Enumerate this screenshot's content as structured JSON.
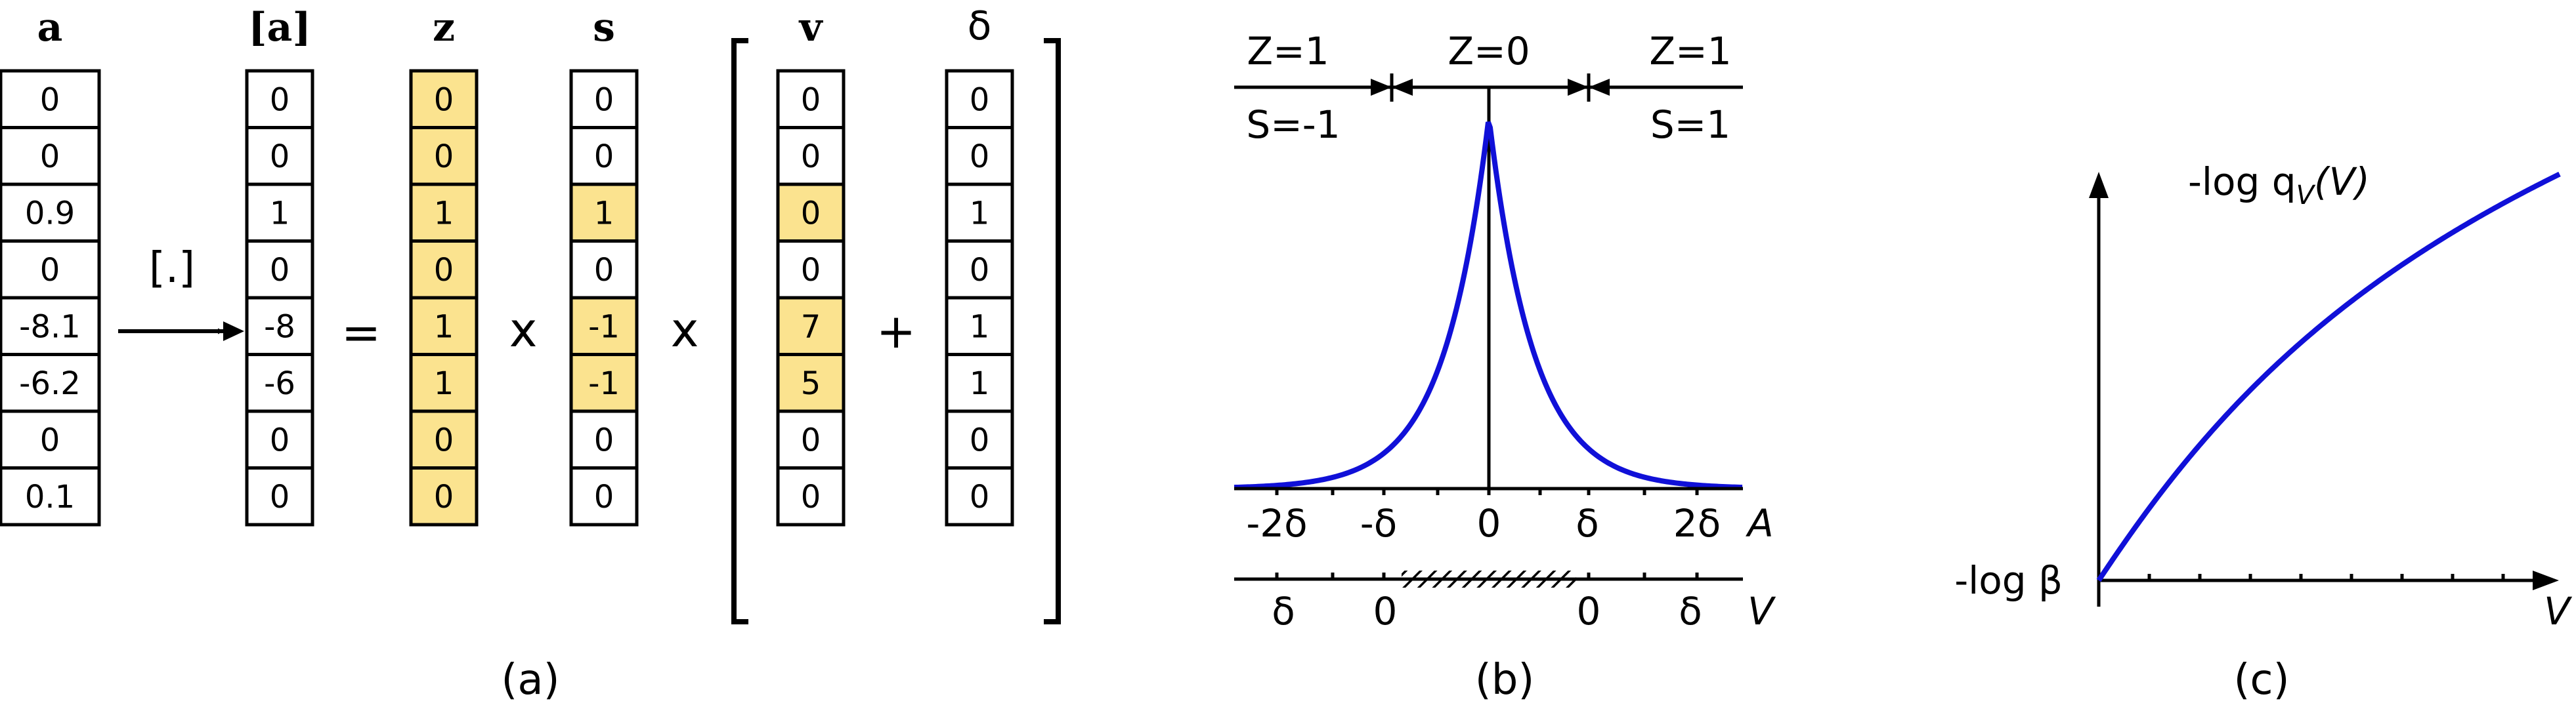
{
  "panel_a": {
    "headers": {
      "a": "a",
      "rounded": "[a]",
      "z": "z",
      "s": "s",
      "v": "v",
      "delta": "δ"
    },
    "operator": "[.]",
    "equals": "=",
    "times1": "x",
    "times2": "x",
    "plus": "+",
    "caption": "(a)",
    "highlight_color": "#fbe38f",
    "columns": {
      "a": [
        "0",
        "0",
        "0.9",
        "0",
        "-8.1",
        "-6.2",
        "0",
        "0.1"
      ],
      "rounded": [
        "0",
        "0",
        "1",
        "0",
        "-8",
        "-6",
        "0",
        "0"
      ],
      "z": [
        "0",
        "0",
        "1",
        "0",
        "1",
        "1",
        "0",
        "0"
      ],
      "s": [
        "0",
        "0",
        "1",
        "0",
        "-1",
        "-1",
        "0",
        "0"
      ],
      "v": [
        "0",
        "0",
        "0",
        "0",
        "7",
        "5",
        "0",
        "0"
      ],
      "delta": [
        "0",
        "0",
        "1",
        "0",
        "1",
        "1",
        "0",
        "0"
      ]
    },
    "highlighted_rows": {
      "z": [
        0,
        1,
        2,
        3,
        4,
        5,
        6,
        7
      ],
      "s": [
        2,
        4,
        5
      ],
      "v": [
        2,
        4,
        5
      ]
    }
  },
  "panel_b": {
    "caption": "(b)",
    "curve_color": "#1010d8",
    "top_labels": {
      "z_left": "Z=1",
      "z_mid": "Z=0",
      "z_right": "Z=1",
      "s_left": "S=-1",
      "s_right": "S=1"
    },
    "axis_a": {
      "ticks": [
        "-2δ",
        "-δ",
        "0",
        "δ",
        "2δ"
      ],
      "label": "A"
    },
    "axis_v": {
      "ticks": [
        "δ",
        "0",
        "0",
        "δ"
      ],
      "label": "V"
    }
  },
  "panel_c": {
    "caption": "(c)",
    "curve_color": "#1010d8",
    "curve_label_prefix": "-log q",
    "curve_label_sub": "V",
    "curve_label_arg": "(V)",
    "y_intercept_label": "-log β",
    "x_label": "V"
  }
}
